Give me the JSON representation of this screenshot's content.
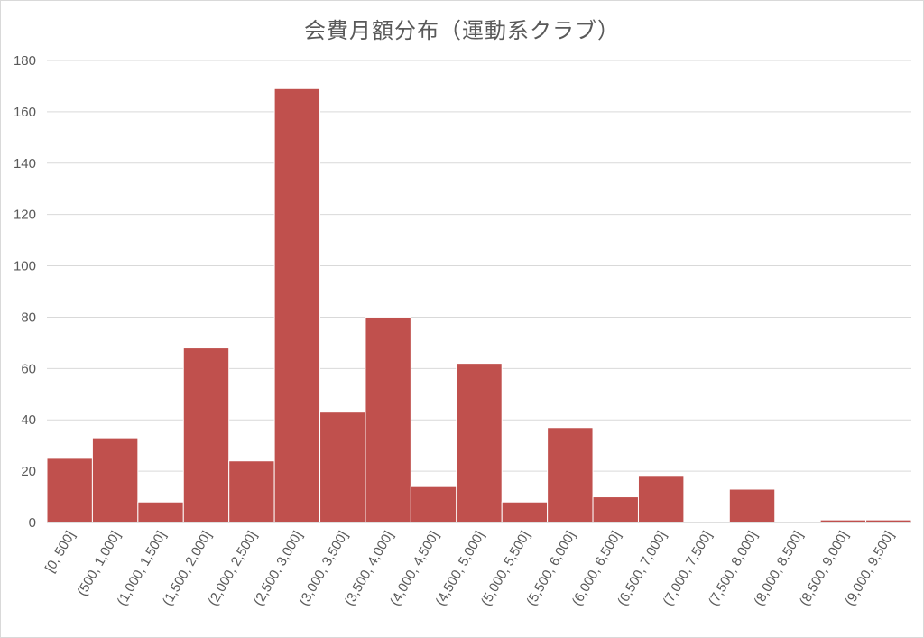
{
  "chart_data": {
    "type": "bar",
    "title": "会費月額分布（運動系クラブ）",
    "xlabel": "",
    "ylabel": "",
    "ylim": [
      0,
      180
    ],
    "yticks": [
      0,
      20,
      40,
      60,
      80,
      100,
      120,
      140,
      160,
      180
    ],
    "grid": true,
    "legend": "none",
    "categories": [
      "[0, 500]",
      "(500, 1,000]",
      "(1,000, 1,500]",
      "(1,500, 2,000]",
      "(2,000, 2,500]",
      "(2,500, 3,000]",
      "(3,000, 3,500]",
      "(3,500, 4,000]",
      "(4,000, 4,500]",
      "(4,500, 5,000]",
      "(5,000, 5,500]",
      "(5,500, 6,000]",
      "(6,000, 6,500]",
      "(6,500, 7,000]",
      "(7,000, 7,500]",
      "(7,500, 8,000]",
      "(8,000, 8,500]",
      "(8,500, 9,000]",
      "(9,000, 9,500]"
    ],
    "values": [
      25,
      33,
      8,
      68,
      24,
      169,
      43,
      80,
      14,
      62,
      8,
      37,
      10,
      18,
      0,
      13,
      0,
      1,
      1
    ],
    "bar_color": "#c0504d"
  }
}
